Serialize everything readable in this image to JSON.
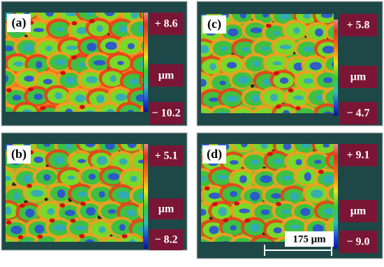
{
  "panels": [
    {
      "label": "(a)",
      "max": "+ 8.6",
      "unit": "μm",
      "min": "− 10.2"
    },
    {
      "label": "(b)",
      "max": "+ 5.1",
      "unit": "μm",
      "min": "− 8.2"
    },
    {
      "label": "(c)",
      "max": "+ 5.8",
      "unit": "μm",
      "min": "− 4.7"
    },
    {
      "label": "(d)",
      "max": "+ 9.1",
      "unit": "μm",
      "min": "− 9.0"
    }
  ],
  "scale_bar": "175 μm"
}
